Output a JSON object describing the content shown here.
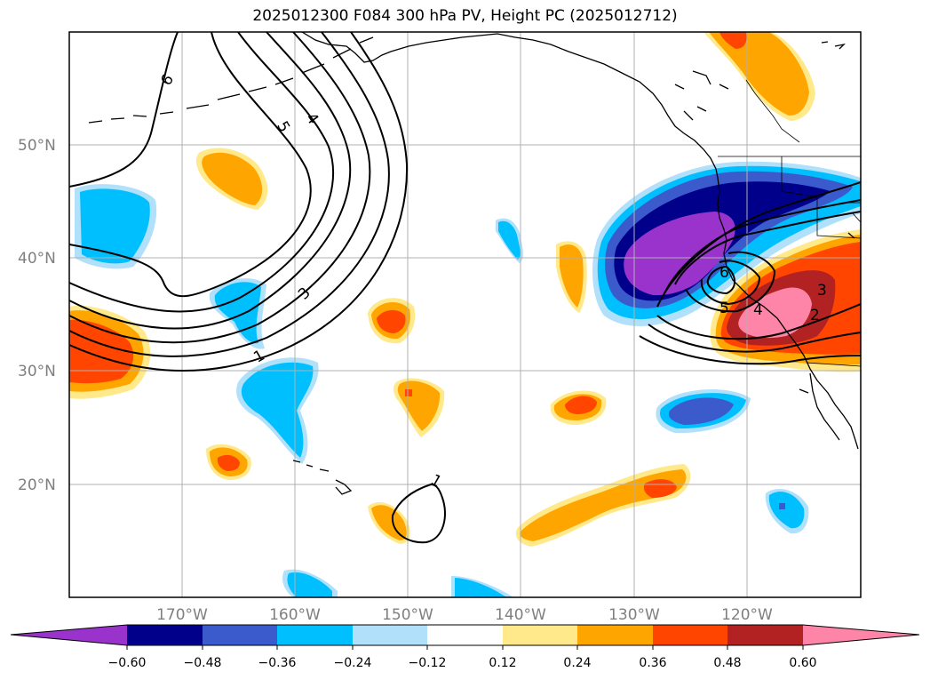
{
  "title": "2025012300 F084 300 hPa PV, Height PC (2025012712)",
  "map": {
    "lat_labels": [
      "50°N",
      "40°N",
      "30°N",
      "20°N"
    ],
    "lon_labels": [
      "170°W",
      "160°W",
      "150°W",
      "140°W",
      "130°W",
      "120°W"
    ],
    "contour_labels": [
      "6",
      "5",
      "4",
      "3",
      "1",
      "1",
      "6",
      "5",
      "4",
      "3",
      "2"
    ]
  },
  "colorbar": {
    "colors": [
      "#9933cc",
      "#00008b",
      "#3b5bcc",
      "#00bfff",
      "#b0e0fa",
      "#ffffff",
      "#ffe98a",
      "#ffa500",
      "#ff4500",
      "#b22222",
      "#ff85a8"
    ],
    "tick_labels": [
      "−0.60",
      "−0.48",
      "−0.36",
      "−0.24",
      "−0.12",
      "0.12",
      "0.24",
      "0.36",
      "0.48",
      "0.60"
    ]
  }
}
